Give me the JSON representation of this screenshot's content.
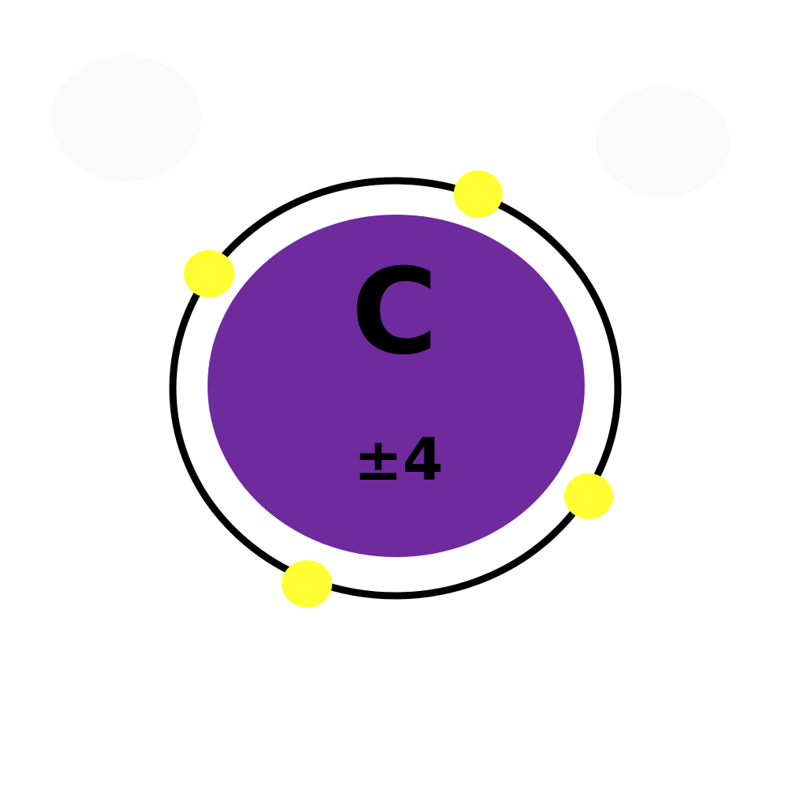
{
  "atom": {
    "symbol": "C",
    "charge": "±4",
    "electron_count": 4,
    "colors": {
      "nucleus": "#6f2a9e",
      "electron": "#ffff33",
      "orbit": "#000000",
      "background": "#ffffff"
    }
  }
}
